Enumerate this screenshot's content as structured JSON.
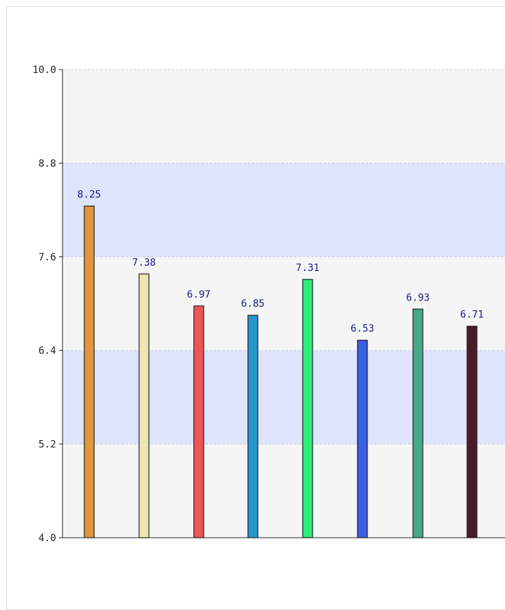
{
  "chart_data": {
    "type": "bar",
    "title": "",
    "xlabel": "",
    "ylabel": "",
    "ylim": [
      4.0,
      10.0
    ],
    "yticks": [
      "4.0",
      "5.2",
      "6.4",
      "7.6",
      "8.8",
      "10.0"
    ],
    "grid": "horizontal dashed",
    "band_colors": [
      "#f5f5f5",
      "#dde4fc"
    ],
    "bars": [
      {
        "value": 8.25,
        "label": "8.25",
        "color": "#e0963a"
      },
      {
        "value": 7.38,
        "label": "7.38",
        "color": "#ece5b5"
      },
      {
        "value": 6.97,
        "label": "6.97",
        "color": "#ee5555"
      },
      {
        "value": 6.85,
        "label": "6.85",
        "color": "#2797cd"
      },
      {
        "value": 7.31,
        "label": "7.31",
        "color": "#2bed78"
      },
      {
        "value": 6.53,
        "label": "6.53",
        "color": "#3a5fe0"
      },
      {
        "value": 6.93,
        "label": "6.93",
        "color": "#47a888"
      },
      {
        "value": 6.71,
        "label": "6.71",
        "color": "#4a1c2a"
      }
    ]
  }
}
